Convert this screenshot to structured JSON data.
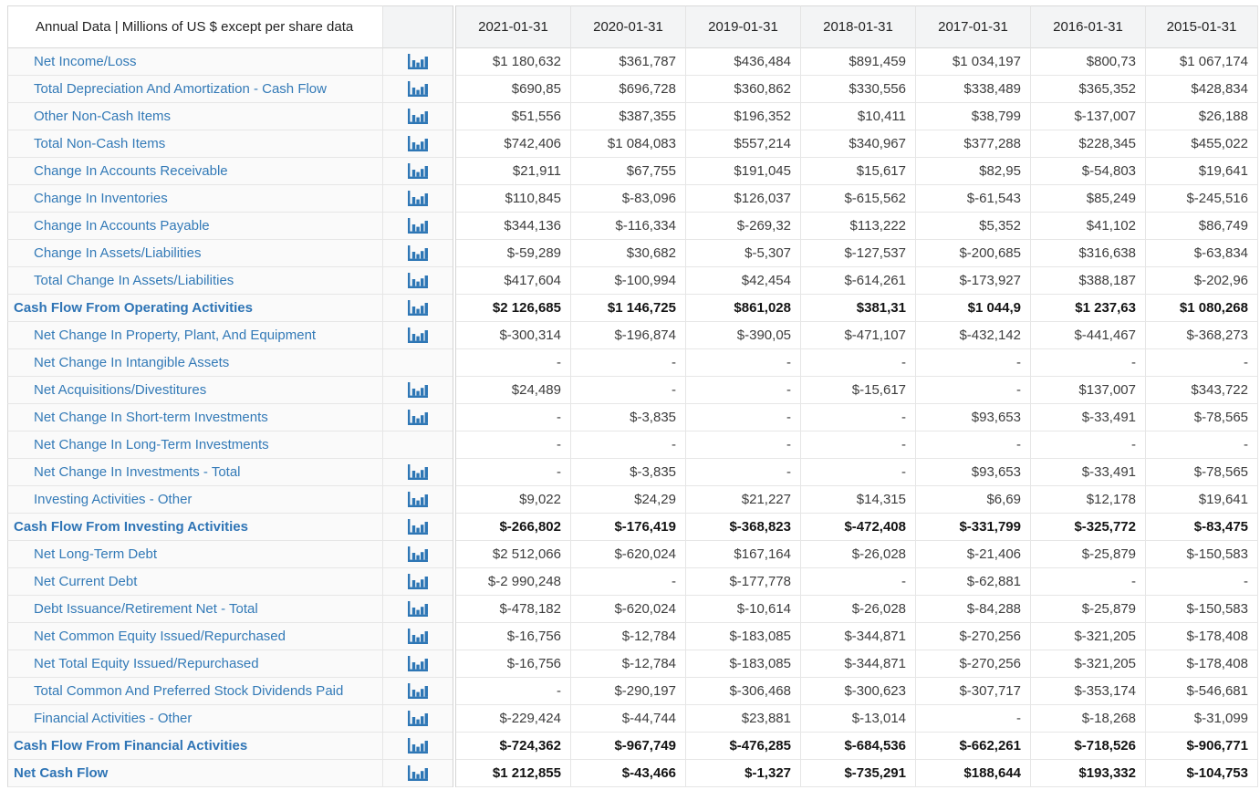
{
  "header": {
    "label": "Annual Data | Millions of US $ except per share data",
    "years": [
      "2021-01-31",
      "2020-01-31",
      "2019-01-31",
      "2018-01-31",
      "2017-01-31",
      "2016-01-31",
      "2015-01-31"
    ]
  },
  "icons": {
    "row_chart": "bar-chart-icon"
  },
  "colors": {
    "link_blue": "#337ab7",
    "bold_link_blue": "#2e74b5",
    "icon_blue": "#2d76b5",
    "value_text": "#3d3d3d",
    "header_bg": "#f3f4f5",
    "frozen_pane_bg": "#fafafa",
    "grid_border": "#e6e6e6"
  },
  "rows": [
    {
      "label": "Net Income/Loss",
      "icon": true,
      "bold": false,
      "values": [
        "$1 180,632",
        "$361,787",
        "$436,484",
        "$891,459",
        "$1 034,197",
        "$800,73",
        "$1 067,174"
      ]
    },
    {
      "label": "Total Depreciation And Amortization - Cash Flow",
      "icon": true,
      "bold": false,
      "values": [
        "$690,85",
        "$696,728",
        "$360,862",
        "$330,556",
        "$338,489",
        "$365,352",
        "$428,834"
      ]
    },
    {
      "label": "Other Non-Cash Items",
      "icon": true,
      "bold": false,
      "values": [
        "$51,556",
        "$387,355",
        "$196,352",
        "$10,411",
        "$38,799",
        "$-137,007",
        "$26,188"
      ]
    },
    {
      "label": "Total Non-Cash Items",
      "icon": true,
      "bold": false,
      "values": [
        "$742,406",
        "$1 084,083",
        "$557,214",
        "$340,967",
        "$377,288",
        "$228,345",
        "$455,022"
      ]
    },
    {
      "label": "Change In Accounts Receivable",
      "icon": true,
      "bold": false,
      "values": [
        "$21,911",
        "$67,755",
        "$191,045",
        "$15,617",
        "$82,95",
        "$-54,803",
        "$19,641"
      ]
    },
    {
      "label": "Change In Inventories",
      "icon": true,
      "bold": false,
      "values": [
        "$110,845",
        "$-83,096",
        "$126,037",
        "$-615,562",
        "$-61,543",
        "$85,249",
        "$-245,516"
      ]
    },
    {
      "label": "Change In Accounts Payable",
      "icon": true,
      "bold": false,
      "values": [
        "$344,136",
        "$-116,334",
        "$-269,32",
        "$113,222",
        "$5,352",
        "$41,102",
        "$86,749"
      ]
    },
    {
      "label": "Change In Assets/Liabilities",
      "icon": true,
      "bold": false,
      "values": [
        "$-59,289",
        "$30,682",
        "$-5,307",
        "$-127,537",
        "$-200,685",
        "$316,638",
        "$-63,834"
      ]
    },
    {
      "label": "Total Change In Assets/Liabilities",
      "icon": true,
      "bold": false,
      "values": [
        "$417,604",
        "$-100,994",
        "$42,454",
        "$-614,261",
        "$-173,927",
        "$388,187",
        "$-202,96"
      ]
    },
    {
      "label": "Cash Flow From Operating Activities",
      "icon": true,
      "bold": true,
      "values": [
        "$2 126,685",
        "$1 146,725",
        "$861,028",
        "$381,31",
        "$1 044,9",
        "$1 237,63",
        "$1 080,268"
      ]
    },
    {
      "label": "Net Change In Property, Plant, And Equipment",
      "icon": true,
      "bold": false,
      "values": [
        "$-300,314",
        "$-196,874",
        "$-390,05",
        "$-471,107",
        "$-432,142",
        "$-441,467",
        "$-368,273"
      ]
    },
    {
      "label": "Net Change In Intangible Assets",
      "icon": false,
      "bold": false,
      "values": [
        "-",
        "-",
        "-",
        "-",
        "-",
        "-",
        "-"
      ]
    },
    {
      "label": "Net Acquisitions/Divestitures",
      "icon": true,
      "bold": false,
      "values": [
        "$24,489",
        "-",
        "-",
        "$-15,617",
        "-",
        "$137,007",
        "$343,722"
      ]
    },
    {
      "label": "Net Change In Short-term Investments",
      "icon": true,
      "bold": false,
      "values": [
        "-",
        "$-3,835",
        "-",
        "-",
        "$93,653",
        "$-33,491",
        "$-78,565"
      ]
    },
    {
      "label": "Net Change In Long-Term Investments",
      "icon": false,
      "bold": false,
      "values": [
        "-",
        "-",
        "-",
        "-",
        "-",
        "-",
        "-"
      ]
    },
    {
      "label": "Net Change In Investments - Total",
      "icon": true,
      "bold": false,
      "values": [
        "-",
        "$-3,835",
        "-",
        "-",
        "$93,653",
        "$-33,491",
        "$-78,565"
      ]
    },
    {
      "label": "Investing Activities - Other",
      "icon": true,
      "bold": false,
      "values": [
        "$9,022",
        "$24,29",
        "$21,227",
        "$14,315",
        "$6,69",
        "$12,178",
        "$19,641"
      ]
    },
    {
      "label": "Cash Flow From Investing Activities",
      "icon": true,
      "bold": true,
      "values": [
        "$-266,802",
        "$-176,419",
        "$-368,823",
        "$-472,408",
        "$-331,799",
        "$-325,772",
        "$-83,475"
      ]
    },
    {
      "label": "Net Long-Term Debt",
      "icon": true,
      "bold": false,
      "values": [
        "$2 512,066",
        "$-620,024",
        "$167,164",
        "$-26,028",
        "$-21,406",
        "$-25,879",
        "$-150,583"
      ]
    },
    {
      "label": "Net Current Debt",
      "icon": true,
      "bold": false,
      "values": [
        "$-2 990,248",
        "-",
        "$-177,778",
        "-",
        "$-62,881",
        "-",
        "-"
      ]
    },
    {
      "label": "Debt Issuance/Retirement Net - Total",
      "icon": true,
      "bold": false,
      "values": [
        "$-478,182",
        "$-620,024",
        "$-10,614",
        "$-26,028",
        "$-84,288",
        "$-25,879",
        "$-150,583"
      ]
    },
    {
      "label": "Net Common Equity Issued/Repurchased",
      "icon": true,
      "bold": false,
      "values": [
        "$-16,756",
        "$-12,784",
        "$-183,085",
        "$-344,871",
        "$-270,256",
        "$-321,205",
        "$-178,408"
      ]
    },
    {
      "label": "Net Total Equity Issued/Repurchased",
      "icon": true,
      "bold": false,
      "values": [
        "$-16,756",
        "$-12,784",
        "$-183,085",
        "$-344,871",
        "$-270,256",
        "$-321,205",
        "$-178,408"
      ]
    },
    {
      "label": "Total Common And Preferred Stock Dividends Paid",
      "icon": true,
      "bold": false,
      "values": [
        "-",
        "$-290,197",
        "$-306,468",
        "$-300,623",
        "$-307,717",
        "$-353,174",
        "$-546,681"
      ]
    },
    {
      "label": "Financial Activities - Other",
      "icon": true,
      "bold": false,
      "values": [
        "$-229,424",
        "$-44,744",
        "$23,881",
        "$-13,014",
        "-",
        "$-18,268",
        "$-31,099"
      ]
    },
    {
      "label": "Cash Flow From Financial Activities",
      "icon": true,
      "bold": true,
      "values": [
        "$-724,362",
        "$-967,749",
        "$-476,285",
        "$-684,536",
        "$-662,261",
        "$-718,526",
        "$-906,771"
      ]
    },
    {
      "label": "Net Cash Flow",
      "icon": true,
      "bold": true,
      "values": [
        "$1 212,855",
        "$-43,466",
        "$-1,327",
        "$-735,291",
        "$188,644",
        "$193,332",
        "$-104,753"
      ]
    }
  ]
}
